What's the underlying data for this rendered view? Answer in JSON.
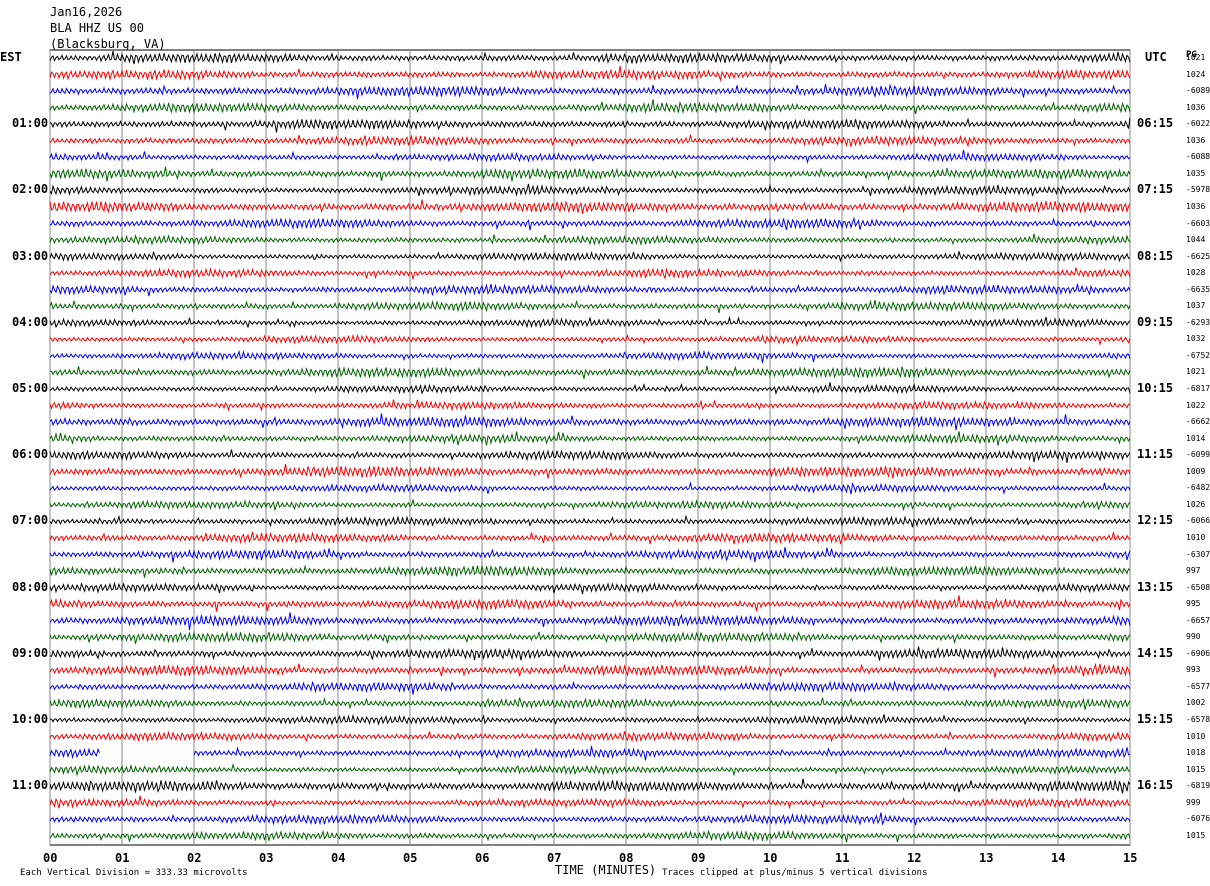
{
  "header": {
    "date": "Jan16,2026",
    "station": "BLA HHZ US 00",
    "location": "(Blacksburg, VA)"
  },
  "corners": {
    "left": "EST",
    "right": "UTC",
    "pg": "PG"
  },
  "footer": {
    "scale_note": "Each Vertical Division =  333.33 microvolts",
    "clip_note": "Traces clipped at plus/minus 5 vertical divisions"
  },
  "chart_data": {
    "type": "line",
    "title": "",
    "xlabel": "TIME (MINUTES)",
    "ylabel": "",
    "xlim": [
      0,
      15
    ],
    "x_ticks": [
      "00",
      "01",
      "02",
      "03",
      "04",
      "05",
      "06",
      "07",
      "08",
      "09",
      "10",
      "11",
      "12",
      "13",
      "14",
      "15"
    ],
    "rows_per_hour": 4,
    "row_count": 48,
    "trace_colors": [
      "#000000",
      "#ff0000",
      "#0000ff",
      "#006400"
    ],
    "grid": true,
    "left_labels": [
      "01:00",
      "02:00",
      "03:00",
      "04:00",
      "05:00",
      "06:00",
      "07:00",
      "08:00",
      "09:00",
      "10:00",
      "11:00"
    ],
    "left_label_rows": [
      4,
      8,
      12,
      16,
      20,
      24,
      28,
      32,
      36,
      40,
      44
    ],
    "right_labels": [
      "06:15",
      "07:15",
      "08:15",
      "09:15",
      "10:15",
      "11:15",
      "12:15",
      "13:15",
      "14:15",
      "15:15",
      "16:15"
    ],
    "right_values": [
      "1021",
      "1024",
      "-6089",
      "1036",
      "-6022",
      "1036",
      "-6088",
      "1035",
      "-5978",
      "1036",
      "-6603",
      "1044",
      "-6625",
      "1028",
      "-6635",
      "1037",
      "-6293",
      "1032",
      "-6752",
      "1021",
      "-6817",
      "1022",
      "-6662",
      "1014",
      "-6099",
      "1009",
      "-6482",
      "1026",
      "-6066",
      "1010",
      "-6307",
      "997",
      "-6508",
      "995",
      "-6657",
      "990",
      "-6906",
      "993",
      "-6577",
      "1002",
      "-6578",
      "1010",
      "1018",
      "1015",
      "-6819",
      "999",
      "-6076",
      "1015"
    ],
    "dropout": {
      "row": 42,
      "from_min": 0.7,
      "to_min": 2.0
    }
  }
}
